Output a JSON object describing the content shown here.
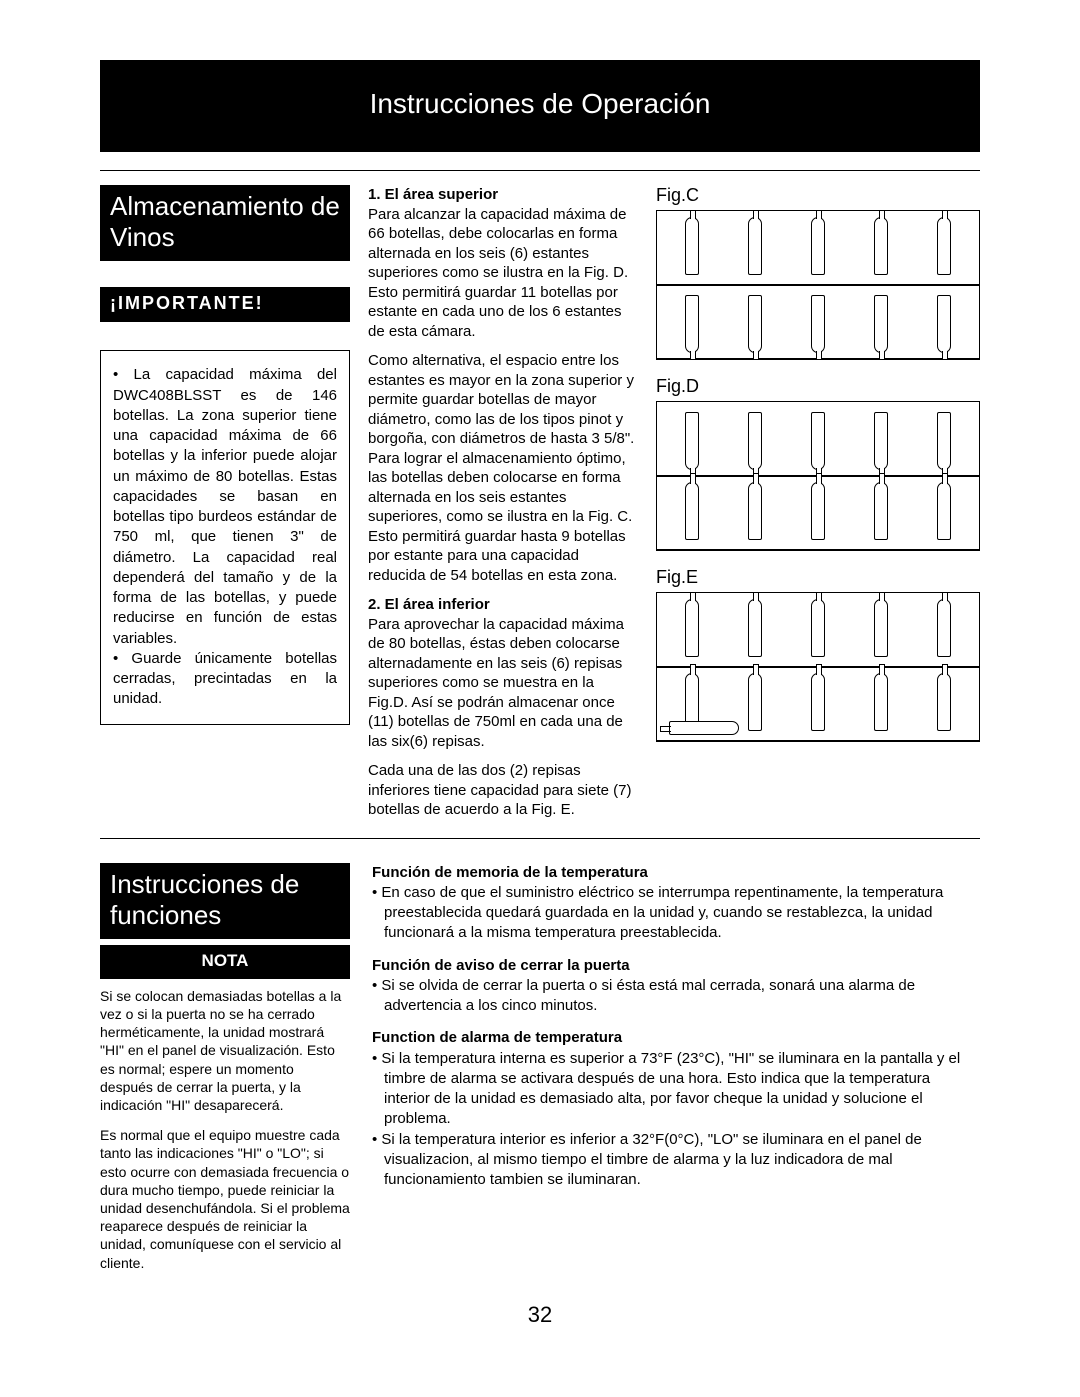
{
  "banner_title": "Instrucciones de Operación",
  "page_number": "32",
  "storage": {
    "section_title": "Almacenamiento de Vinos",
    "important_label": "¡IMPORTANTE!",
    "important_body": [
      "• La capacidad máxima del DWC408BLSST es de 146 botellas. La zona superior tiene una capacidad máxima de 66 botellas y la inferior puede alojar un máximo de 80 botellas. Estas capacidades se basan en botellas tipo burdeos estándar de 750 ml, que tienen 3\" de diámetro. La capacidad real dependerá del tamaño y de la forma de las botellas, y puede reducirse en función de estas variables.",
      "• Guarde únicamente botellas cerradas, precintadas en la unidad."
    ],
    "mid": {
      "h1": "1. El área superior",
      "p1": "Para alcanzar la capacidad máxima de 66 botellas, debe colocarlas en forma alternada en los seis (6) estantes superiores como se ilustra en la Fig. D. Esto permitirá guardar 11 botellas por estante en cada uno de los 6 estantes de esta cámara.",
      "p2": "Como alternativa, el espacio entre los estantes es mayor en la zona superior y permite guardar botellas de mayor diámetro, como las de los tipos pinot y borgoña, con diámetros de hasta 3 5/8\". Para lograr el almacenamiento óptimo, las botellas deben colocarse en forma alternada en los seis estantes superiores, como se ilustra en la Fig. C. Esto permitirá guardar hasta 9 botellas por estante para una capacidad reducida de 54 botellas en esta zona.",
      "h2": "2. El área inferior",
      "p3": "Para aprovechar la capacidad máxima de 80 botellas, éstas deben colocarse alternadamente en las seis (6) repisas superiores como se muestra en la Fig.D. Así se podrán almacenar once (11) botellas de 750ml en cada una de las six(6) repisas.",
      "p4": "Cada una de las dos (2) repisas inferiores tiene capacidad para siete (7) botellas de acuerdo a la Fig. E."
    },
    "figs": {
      "c": "Fig.C",
      "d": "Fig.D",
      "e": "Fig.E"
    }
  },
  "functions": {
    "section_title": "Instrucciones de funciones",
    "nota_label": "NOTA",
    "nota_body": [
      "Si se colocan demasiadas botellas a la vez o si la puerta no se ha cerrado herméticamente, la unidad mostrará \"HI\" en el panel de visualización. Esto es normal; espere un momento después de cerrar la puerta, y la indicación \"HI\" desaparecerá.",
      "Es normal que el equipo muestre cada tanto las indicaciones \"HI\" o \"LO\"; si esto ocurre con demasiada frecuencia o dura mucho tiempo, puede reiniciar la unidad desenchufándola. Si el problema reaparece después de reiniciar la unidad, comuníquese con el servicio al cliente."
    ],
    "features": [
      {
        "h": "Función de memoria de la temperatura",
        "items": [
          "En caso de que el suministro eléctrico se interrumpa repentinamente, la temperatura preestablecida quedará guardada en la unidad y, cuando se restablezca, la unidad funcionará a la misma temperatura preestablecida."
        ]
      },
      {
        "h": "Función de aviso de cerrar la puerta",
        "items": [
          "Si se olvida de cerrar la puerta o si ésta está mal cerrada, sonará una alarma de advertencia a los cinco minutos."
        ]
      },
      {
        "h": "Function de alarma de temperatura",
        "items": [
          "Si la temperatura interna es superior a 73°F (23°C), \"HI\" se iluminara en la pantalla y el timbre de alarma se activara después de una hora. Esto indica que la temperatura interior de la unidad es demasiado alta, por favor cheque la unidad y solucione el problema.",
          "Si la temperatura interior es inferior a 32°F(0°C), \"LO\" se iluminara en el panel de visualizacion, al mismo tiempo el timbre de alarma y la luz indicadora de mal funcionamiento tambien se iluminaran."
        ]
      }
    ]
  }
}
